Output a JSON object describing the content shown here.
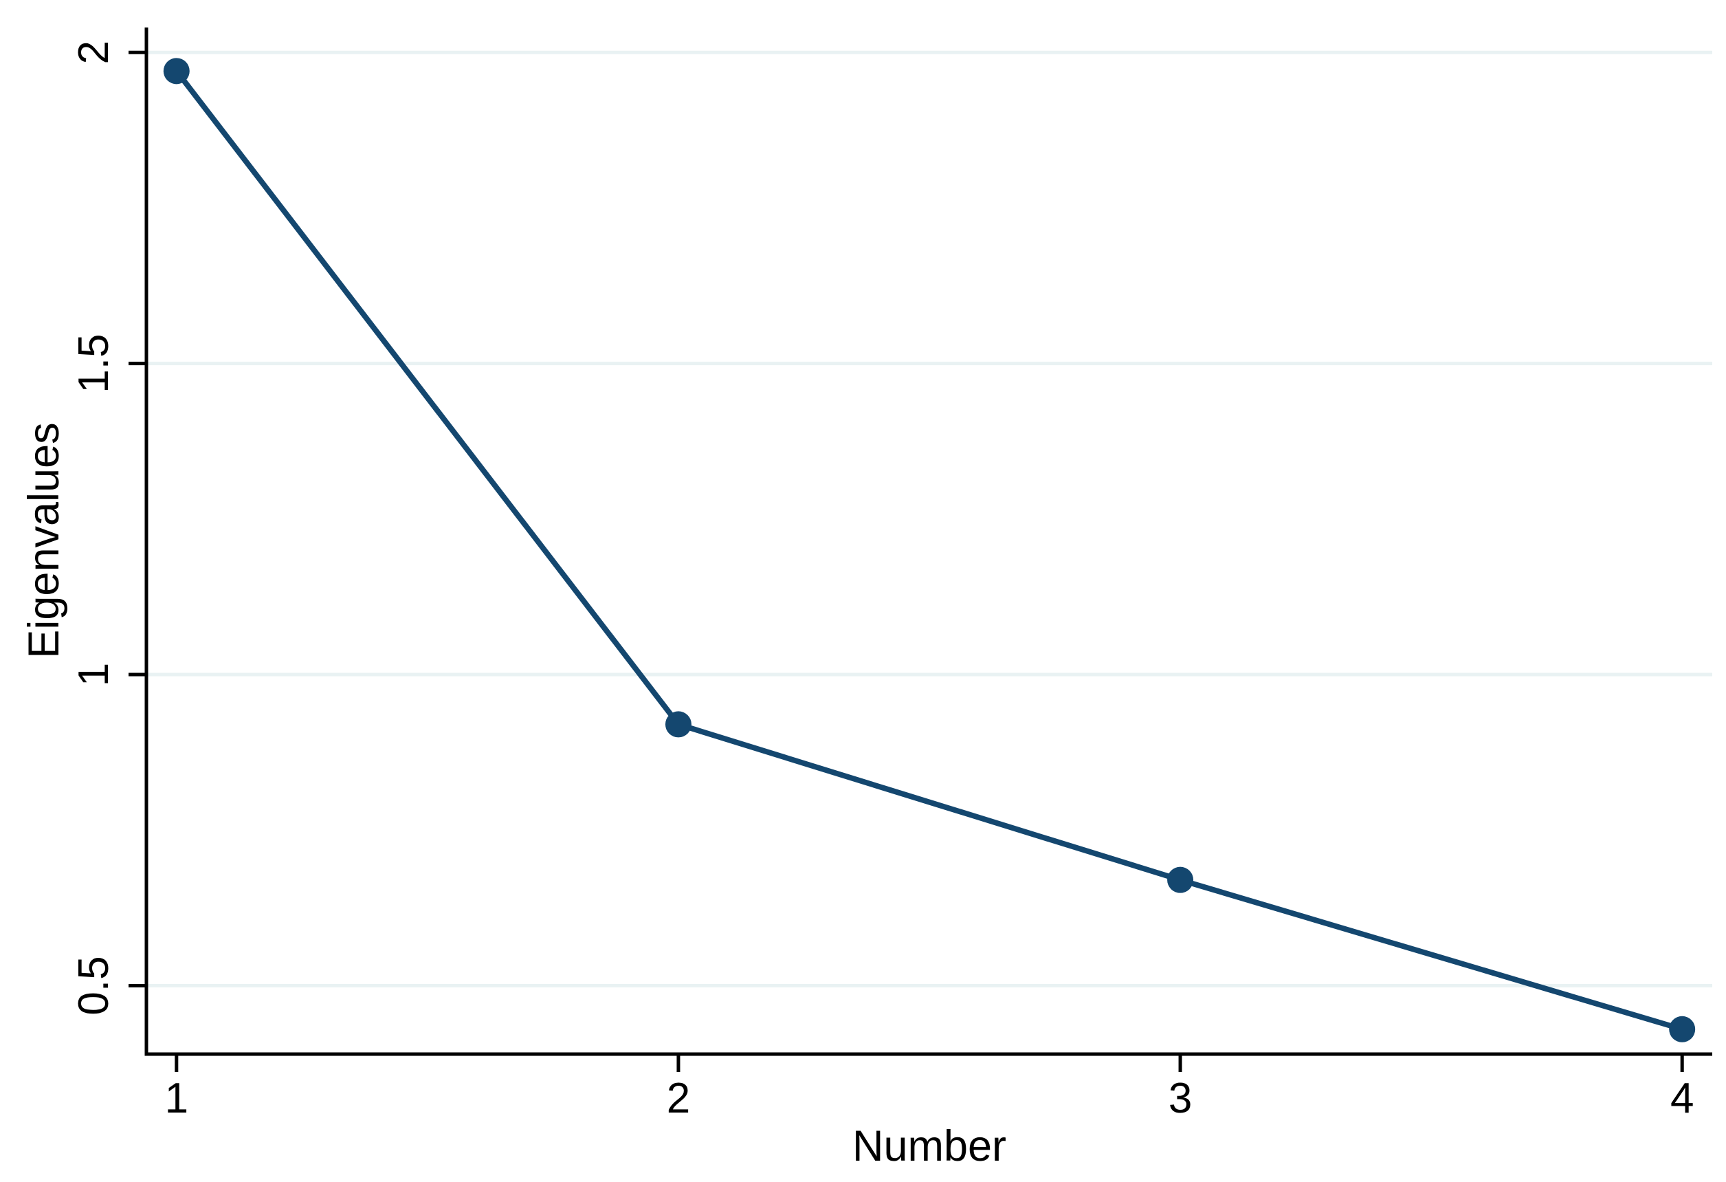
{
  "chart_data": {
    "type": "line",
    "title": "",
    "xlabel": "Number",
    "ylabel": "Eigenvalues",
    "x": [
      1,
      2,
      3,
      4
    ],
    "series": [
      {
        "name": "Eigenvalues",
        "values": [
          1.97,
          0.92,
          0.67,
          0.43
        ]
      }
    ],
    "x_ticks": {
      "values": [
        1,
        2,
        3,
        4
      ],
      "labels": [
        "1",
        "2",
        "3",
        "4"
      ]
    },
    "y_ticks": {
      "values": [
        0.5,
        1,
        1.5,
        2
      ],
      "labels": [
        "0.5",
        "1",
        "1.5",
        "2"
      ]
    },
    "xlim": [
      0.94,
      4.06
    ],
    "ylim": [
      0.39,
      2.04
    ],
    "grid": "horizontal",
    "legend": "none",
    "marker": "circle",
    "colors": {
      "line": "#14476f",
      "marker": "#14476f",
      "grid": "#e9f2f3",
      "axis": "#000000",
      "text": "#000000",
      "background": "#ffffff"
    }
  }
}
